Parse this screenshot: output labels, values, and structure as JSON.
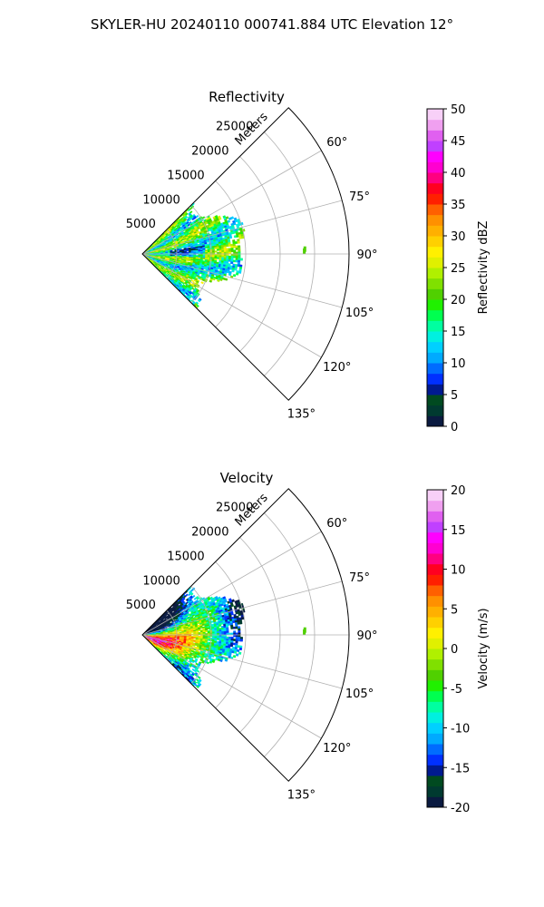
{
  "figure": {
    "suptitle": "SKYLER-HU  20240110  000741.884 UTC Elevation 12°"
  },
  "chart_data": [
    {
      "type": "heatmap",
      "projection": "polar-sector",
      "title": "Reflectivity",
      "range_label": "Meters",
      "range_ticks": [
        5000,
        10000,
        15000,
        20000,
        25000
      ],
      "range_tick_labels": [
        "5000",
        "10000",
        "15000",
        "20000",
        "25000"
      ],
      "rmax": 30000,
      "azimuth_limits_deg": [
        45,
        135
      ],
      "azimuth_ticks_deg": [
        60,
        75,
        90,
        105,
        120,
        135
      ],
      "azimuth_tick_labels": [
        "60°",
        "75°",
        "90°",
        "105°",
        "120°",
        "135°"
      ],
      "grid": true,
      "data_extent_m": 15500,
      "colorbar": {
        "label": "Reflectivity dBZ",
        "vmin": 0,
        "vmax": 50,
        "ticks": [
          0,
          5,
          10,
          15,
          20,
          25,
          30,
          35,
          40,
          45,
          50
        ],
        "tick_labels": [
          "0",
          "5",
          "10",
          "15",
          "20",
          "25",
          "30",
          "35",
          "40",
          "45",
          "50"
        ]
      },
      "colormap": [
        [
          "#0a1a40",
          "#003a30",
          "#004a20",
          "#001a90",
          "#0030ff",
          "#006cff",
          "#00aaff",
          "#00d0ff",
          "#00f0e0",
          "#00ffa0",
          "#00ff50",
          "#20f000",
          "#50d000",
          "#80e000",
          "#b0f000",
          "#e0f000",
          "#fff000",
          "#ffd000",
          "#ffb000",
          "#ff9000",
          "#ff6000",
          "#ff2000",
          "#ff0020",
          "#ff0080",
          "#ff00d0",
          "#ff00ff",
          "#c040ff",
          "#e060f0",
          "#f0a0f0",
          "#f8d0f8"
        ]
      ],
      "dominant_values_description": ""
    },
    {
      "type": "heatmap",
      "projection": "polar-sector",
      "title": "Velocity",
      "range_label": "Meters",
      "range_ticks": [
        5000,
        10000,
        15000,
        20000,
        25000
      ],
      "range_tick_labels": [
        "5000",
        "10000",
        "15000",
        "20000",
        "25000"
      ],
      "rmax": 30000,
      "azimuth_limits_deg": [
        45,
        135
      ],
      "azimuth_ticks_deg": [
        60,
        75,
        90,
        105,
        120,
        135
      ],
      "azimuth_tick_labels": [
        "60°",
        "75°",
        "90°",
        "105°",
        "120°",
        "135°"
      ],
      "grid": true,
      "data_extent_m": 15500,
      "colorbar": {
        "label": "Velocity (m/s)",
        "vmin": -20,
        "vmax": 20,
        "ticks": [
          -20,
          -15,
          -10,
          -5,
          0,
          5,
          10,
          15,
          20
        ],
        "tick_labels": [
          "-20",
          "-15",
          "-10",
          "-5",
          "0",
          "5",
          "10",
          "15",
          "20"
        ]
      },
      "colormap": [
        [
          "#0a1a40",
          "#003a30",
          "#004a20",
          "#001a90",
          "#0030ff",
          "#006cff",
          "#00aaff",
          "#00d0ff",
          "#00f0e0",
          "#00ffa0",
          "#00ff50",
          "#20f000",
          "#50d000",
          "#80e000",
          "#b0f000",
          "#e0f000",
          "#fff000",
          "#ffd000",
          "#ffb000",
          "#ff9000",
          "#ff6000",
          "#ff2000",
          "#ff0020",
          "#ff0080",
          "#ff00d0",
          "#ff00ff",
          "#c040ff",
          "#e060f0",
          "#f0a0f0",
          "#f8d0f8"
        ]
      ]
    }
  ]
}
